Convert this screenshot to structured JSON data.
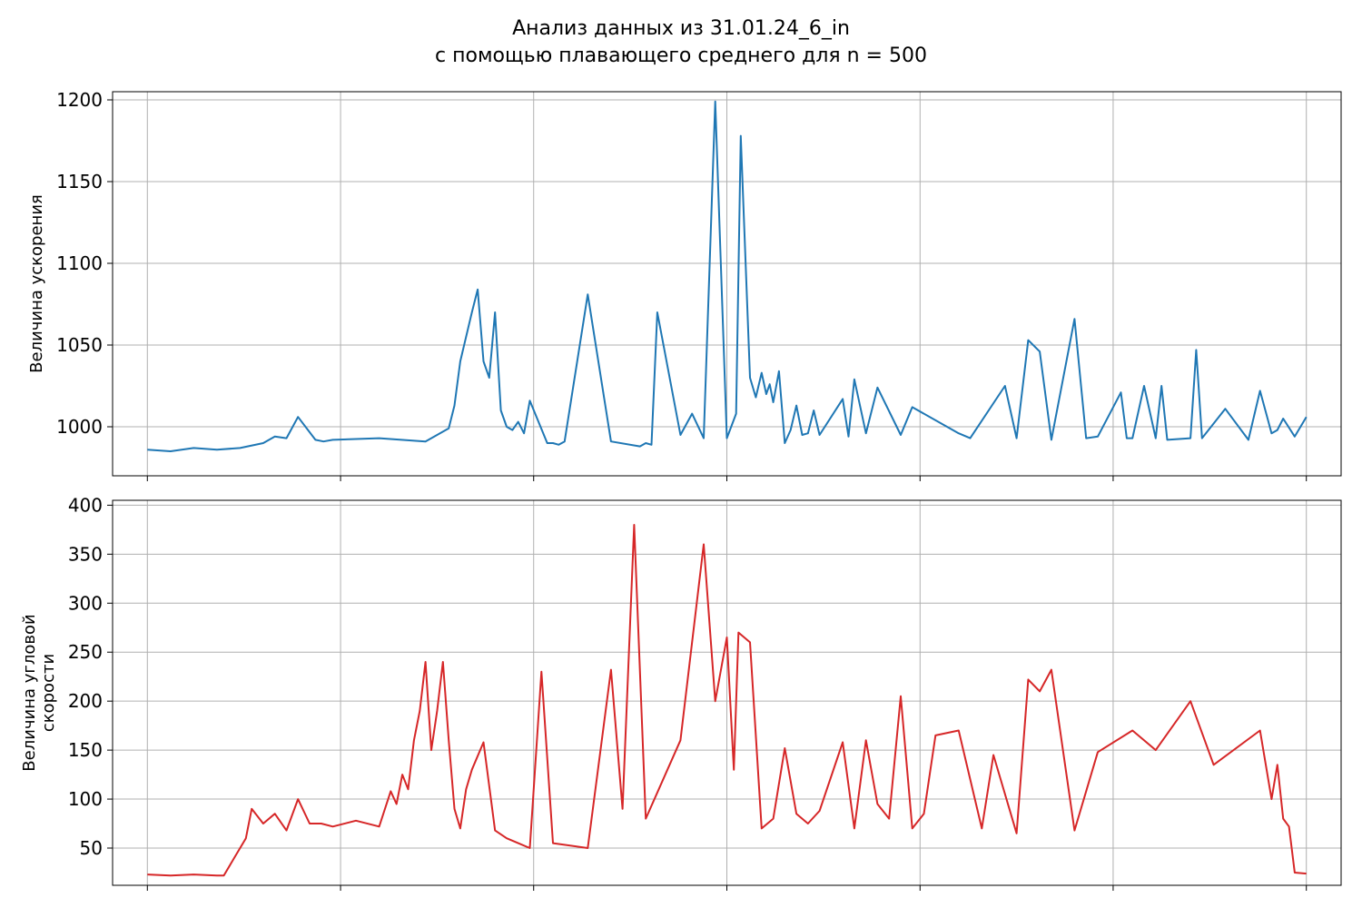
{
  "figure": {
    "title_line1": "Анализ данных из 31.01.24_6_in",
    "title_line2": "с помощью плавающего среднего для n = 500"
  },
  "chart_data": [
    {
      "type": "line",
      "name": "acceleration",
      "ylabel": "Величина ускорения",
      "xlabel": "",
      "color": "#1f77b4",
      "grid": true,
      "xlim": [
        -0.03,
        1.03
      ],
      "ylim": [
        970,
        1205
      ],
      "yticks": [
        1000,
        1050,
        1100,
        1150,
        1200
      ],
      "x_ticks_labeled": false,
      "x": [
        0.0,
        0.02,
        0.04,
        0.06,
        0.08,
        0.1,
        0.11,
        0.12,
        0.13,
        0.145,
        0.152,
        0.16,
        0.2,
        0.24,
        0.26,
        0.265,
        0.27,
        0.28,
        0.285,
        0.29,
        0.295,
        0.3,
        0.305,
        0.31,
        0.315,
        0.32,
        0.325,
        0.33,
        0.345,
        0.35,
        0.355,
        0.36,
        0.38,
        0.4,
        0.425,
        0.43,
        0.435,
        0.44,
        0.46,
        0.47,
        0.48,
        0.49,
        0.5,
        0.508,
        0.512,
        0.52,
        0.525,
        0.53,
        0.534,
        0.537,
        0.54,
        0.545,
        0.55,
        0.555,
        0.56,
        0.565,
        0.57,
        0.575,
        0.58,
        0.6,
        0.605,
        0.61,
        0.62,
        0.63,
        0.65,
        0.66,
        0.7,
        0.71,
        0.74,
        0.75,
        0.76,
        0.77,
        0.78,
        0.8,
        0.81,
        0.82,
        0.84,
        0.845,
        0.85,
        0.86,
        0.87,
        0.875,
        0.88,
        0.9,
        0.905,
        0.91,
        0.93,
        0.95,
        0.96,
        0.97,
        0.975,
        0.98,
        0.99,
        1.0
      ],
      "y": [
        986,
        985,
        987,
        986,
        987,
        990,
        994,
        993,
        1006,
        992,
        991,
        992,
        993,
        991,
        999,
        1013,
        1040,
        1070,
        1084,
        1040,
        1030,
        1070,
        1010,
        1000,
        998,
        1003,
        996,
        1016,
        990,
        990,
        989,
        991,
        1081,
        991,
        988,
        990,
        989,
        1070,
        995,
        1008,
        993,
        1199,
        993,
        1008,
        1178,
        1030,
        1018,
        1033,
        1020,
        1026,
        1015,
        1034,
        990,
        998,
        1013,
        995,
        996,
        1010,
        995,
        1017,
        994,
        1029,
        996,
        1024,
        995,
        1012,
        996,
        993,
        1025,
        993,
        1053,
        1046,
        992,
        1066,
        993,
        994,
        1021,
        993,
        993,
        1025,
        993,
        1025,
        992,
        993,
        1047,
        993,
        1011,
        992,
        1022,
        996,
        998,
        1005,
        994,
        1006
      ]
    },
    {
      "type": "line",
      "name": "angular_velocity",
      "ylabel": "Величина угловой скорости",
      "xlabel": "",
      "color": "#d62728",
      "grid": true,
      "xlim": [
        -0.03,
        1.03
      ],
      "ylim": [
        12,
        405
      ],
      "yticks": [
        50,
        100,
        150,
        200,
        250,
        300,
        350,
        400
      ],
      "x_ticks_labeled": false,
      "x": [
        0.0,
        0.02,
        0.04,
        0.06,
        0.066,
        0.075,
        0.085,
        0.09,
        0.1,
        0.11,
        0.12,
        0.13,
        0.14,
        0.15,
        0.16,
        0.18,
        0.2,
        0.21,
        0.215,
        0.22,
        0.225,
        0.23,
        0.235,
        0.24,
        0.245,
        0.25,
        0.255,
        0.26,
        0.265,
        0.27,
        0.275,
        0.28,
        0.29,
        0.3,
        0.31,
        0.32,
        0.33,
        0.34,
        0.35,
        0.38,
        0.4,
        0.41,
        0.42,
        0.43,
        0.46,
        0.48,
        0.49,
        0.5,
        0.506,
        0.51,
        0.52,
        0.53,
        0.54,
        0.55,
        0.56,
        0.57,
        0.58,
        0.6,
        0.61,
        0.62,
        0.63,
        0.64,
        0.65,
        0.66,
        0.67,
        0.68,
        0.7,
        0.72,
        0.73,
        0.75,
        0.76,
        0.77,
        0.78,
        0.8,
        0.82,
        0.85,
        0.87,
        0.9,
        0.92,
        0.96,
        0.97,
        0.975,
        0.98,
        0.985,
        0.99,
        1.0
      ],
      "y": [
        23,
        22,
        23,
        22,
        22,
        40,
        60,
        90,
        75,
        85,
        68,
        100,
        75,
        75,
        72,
        78,
        72,
        108,
        95,
        125,
        110,
        160,
        190,
        240,
        150,
        190,
        240,
        160,
        90,
        70,
        110,
        130,
        158,
        68,
        60,
        55,
        50,
        230,
        55,
        50,
        232,
        90,
        380,
        80,
        160,
        360,
        200,
        265,
        130,
        270,
        260,
        70,
        80,
        152,
        85,
        75,
        88,
        158,
        70,
        160,
        95,
        80,
        205,
        70,
        85,
        165,
        170,
        70,
        145,
        65,
        222,
        210,
        232,
        68,
        148,
        170,
        150,
        200,
        135,
        170,
        100,
        135,
        80,
        72,
        25,
        24
      ]
    }
  ]
}
